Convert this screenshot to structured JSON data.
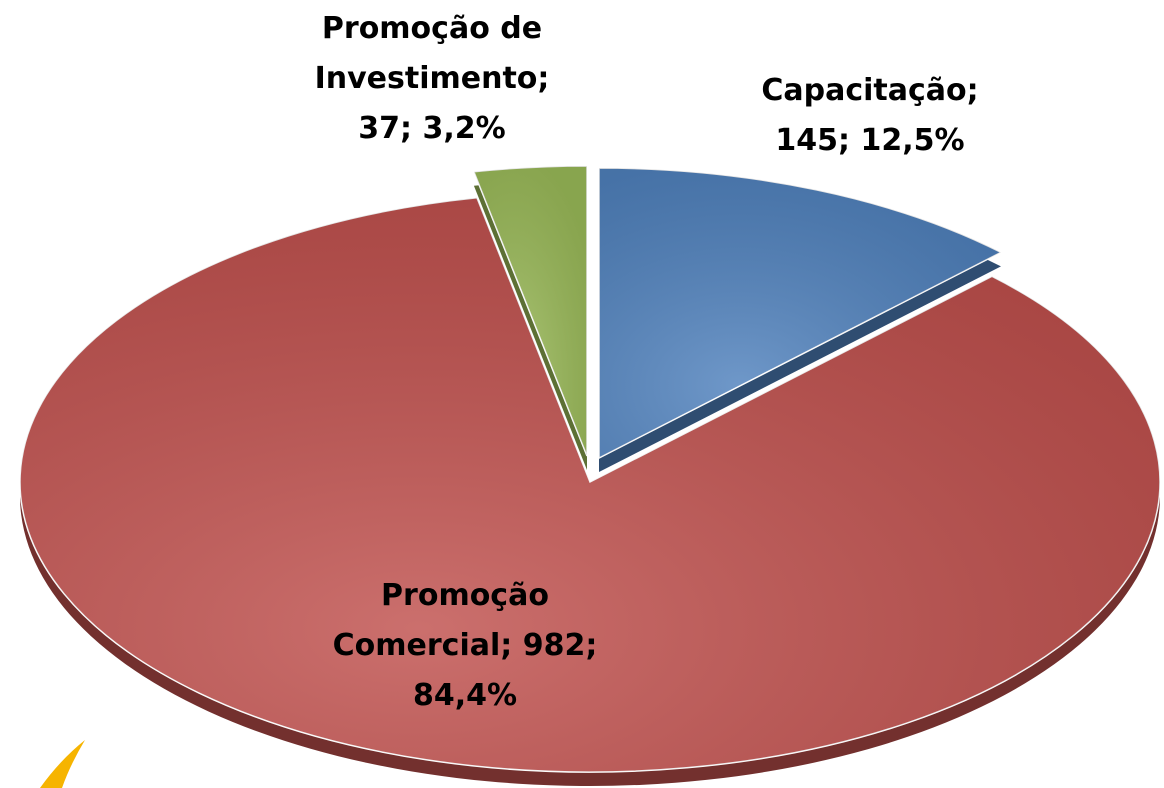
{
  "chart_data": {
    "type": "pie",
    "categories": [
      "Capacitação",
      "Promoção Comercial",
      "Promoção de Investimento"
    ],
    "values": [
      145,
      982,
      37
    ],
    "value_labels": [
      "Capacitação; 145; 12,5%",
      "Promoção Comercial; 982; 84,4%",
      "Promoção de Investimento; 37; 3,2%"
    ],
    "colors": [
      "#4f81bd",
      "#c0504d",
      "#9bbb59"
    ]
  }
}
